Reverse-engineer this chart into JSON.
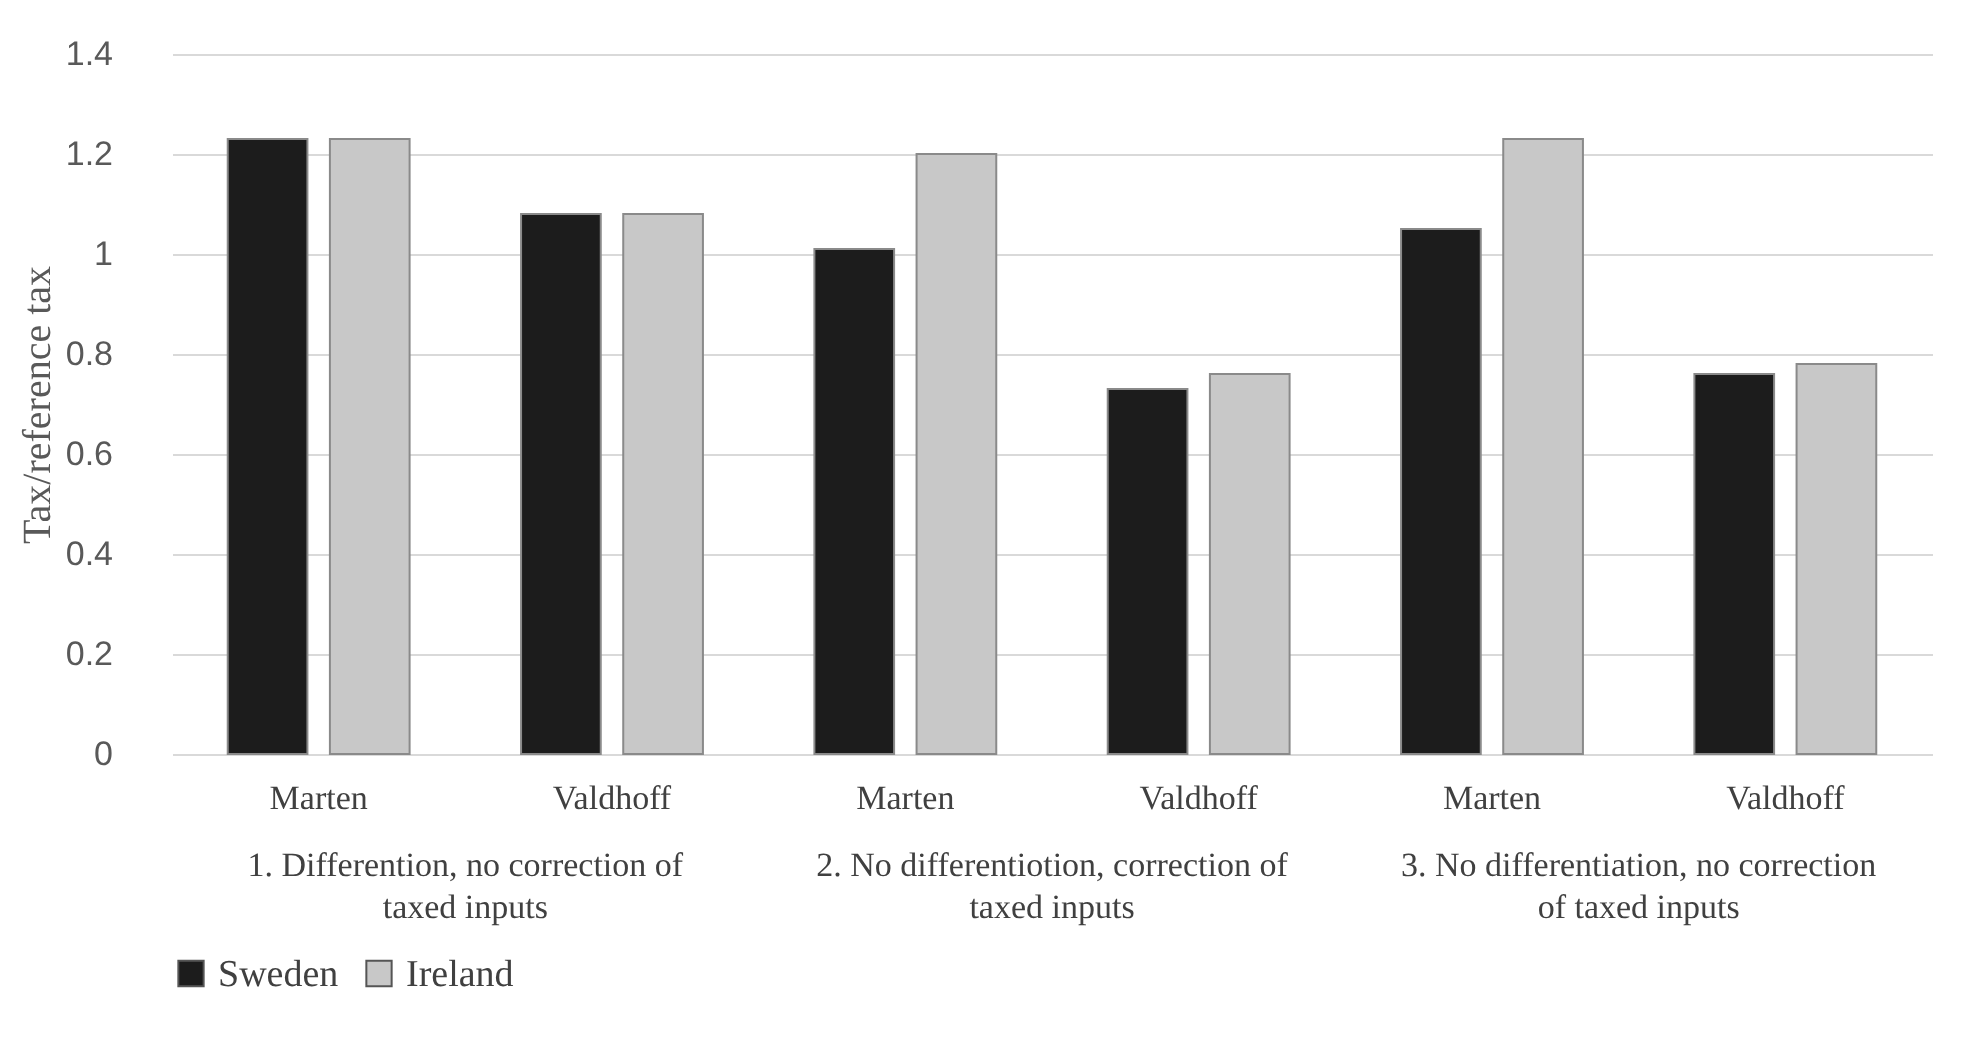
{
  "chart_data": {
    "type": "bar",
    "ylabel": "Tax/reference tax",
    "categories": [
      "Marten",
      "Valdhoff",
      "Marten",
      "Valdhoff",
      "Marten",
      "Valdhoff"
    ],
    "series": [
      {
        "name": "Sweden",
        "color": "#1c1c1c",
        "values": [
          1.23,
          1.08,
          1.01,
          0.73,
          1.05,
          0.76
        ]
      },
      {
        "name": "Ireland",
        "color": "#c8c8c8",
        "values": [
          1.23,
          1.08,
          1.2,
          0.76,
          1.23,
          0.78
        ]
      }
    ],
    "annotations": [
      "1. Differention, no correction of taxed inputs",
      "2. No differentiotion, correction of taxed inputs",
      "3. No differentiation, no correction of taxed inputs"
    ],
    "ylim": [
      0,
      1.4
    ],
    "yticks": [
      0,
      0.2,
      0.4,
      0.6,
      0.8,
      1,
      1.2,
      1.4
    ],
    "grid": "y",
    "legend": "bottom"
  }
}
